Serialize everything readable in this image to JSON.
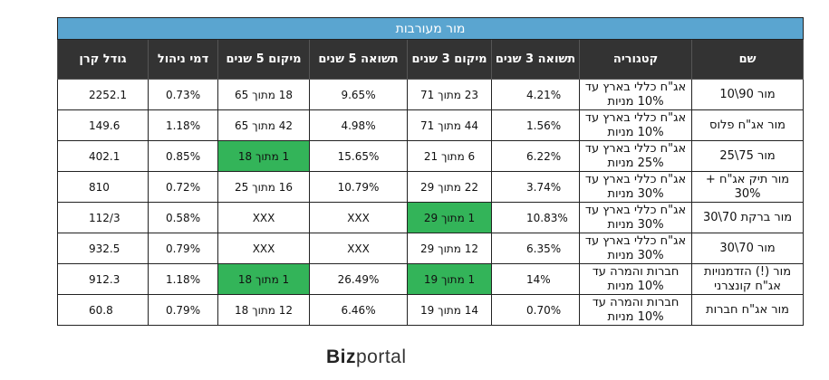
{
  "title": "מור מעורבות",
  "columns": [
    "שם",
    "קטגוריה",
    "תשואה 3 שנים",
    "מיקום 3 שנים",
    "תשואה 5 שנים",
    "מיקום 5 שנים",
    "דמי ניהול",
    "גודל קרן"
  ],
  "rows": [
    {
      "name": "מור 90\\10",
      "category": "אג\"ח כללי בארץ עד 10% מניות",
      "ret3": "4.21%",
      "rank3": "23 מתוך 71",
      "ret5": "9.65%",
      "rank5": "18 מתוך 65",
      "fee": "0.73%",
      "size": "2252.1"
    },
    {
      "name": "מור אג\"ח פלוס",
      "category": "אג\"ח כללי בארץ עד 10% מניות",
      "ret3": "1.56%",
      "rank3": "44 מתוך 71",
      "ret5": "4.98%",
      "rank5": "42 מתוך 65",
      "fee": "1.18%",
      "size": "149.6"
    },
    {
      "name": "מור 75\\25",
      "category": "אג\"ח כללי בארץ עד 25% מניות",
      "ret3": "6.22%",
      "rank3": "6 מתוך 21",
      "ret5": "15.65%",
      "rank5": "1 מתוך 18",
      "fee": "0.85%",
      "size": "402.1"
    },
    {
      "name": "מור תיק אג\"ח + 30%",
      "category": "אג\"ח כללי בארץ עד 30% מניות",
      "ret3": "3.74%",
      "rank3": "22 מתוך 29",
      "ret5": "10.79%",
      "rank5": "16 מתוך 25",
      "fee": "0.72%",
      "size": "810"
    },
    {
      "name": "מור ברקת 70\\30",
      "category": "אג\"ח כללי בארץ עד 30% מניות",
      "ret3": "10.83%",
      "rank3": "1 מתוך 29",
      "ret5": "XXX",
      "rank5": "XXX",
      "fee": "0.58%",
      "size": "112/3"
    },
    {
      "name": "מור 70\\30",
      "category": "אג\"ח כללי בארץ עד 30% מניות",
      "ret3": "6.35%",
      "rank3": "12 מתוך 29",
      "ret5": "XXX",
      "rank5": "XXX",
      "fee": "0.79%",
      "size": "932.5"
    },
    {
      "name": "מור (!) הזדמנויות אג\"ח קונצרני",
      "category": "חברות והמרה עד 10% מניות",
      "ret3": "14%",
      "rank3": "1 מתוך 19",
      "ret5": "26.49%",
      "rank5": "1 מתוך 18",
      "fee": "1.18%",
      "size": "912.3"
    },
    {
      "name": "מור אג\"ח חברות",
      "category": "חברות והמרה עד 10% מניות",
      "ret3": "0.70%",
      "rank3": "14 מתוך 19",
      "ret5": "6.46%",
      "rank5": "12 מתוך 18",
      "fee": "0.79%",
      "size": "60.8"
    }
  ],
  "highlight_color": "#33b459",
  "header_color": "#333333",
  "title_color": "#5aa5d0",
  "logo": {
    "part1": "Biz",
    "part2": "portal"
  }
}
